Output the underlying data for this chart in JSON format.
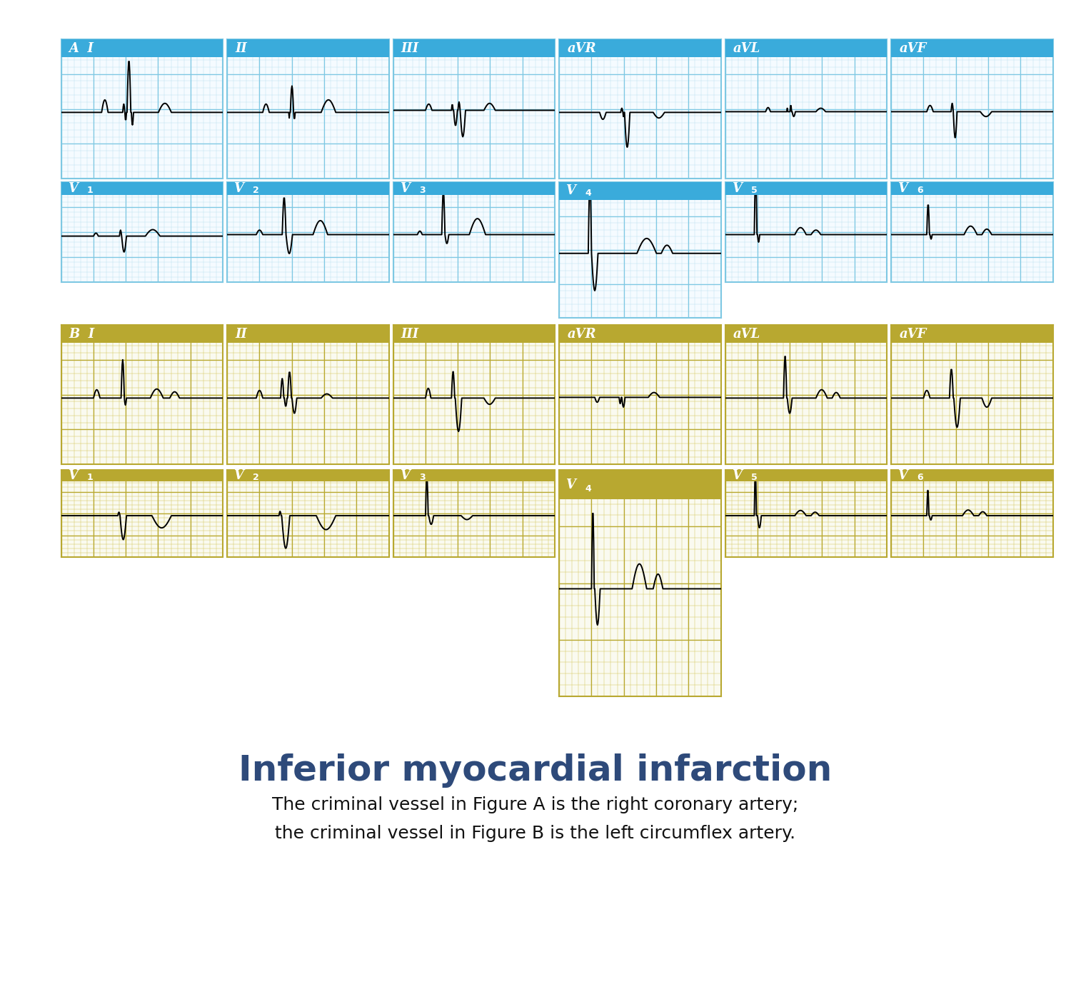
{
  "title": "Inferior myocardial infarction",
  "subtitle1": "The criminal vessel in Figure A is the right coronary artery;",
  "subtitle2": "the criminal vessel in Figure B is the left circumflex artery.",
  "blue_header_color": "#3AABDB",
  "gold_header_color": "#B8A830",
  "grid_blue_minor": "#BDE0F0",
  "grid_blue_major": "#7EC8E3",
  "grid_gold_minor": "#D4C55A",
  "grid_gold_major": "#B8A830",
  "bg_color": "#FFFFFF",
  "panel_bg": "#F5FBFF",
  "panel_bg_gold": "#FAFAF0",
  "title_color": "#2E4A7A",
  "subtitle_color": "#111111",
  "title_fontsize": 36,
  "subtitle_fontsize": 18,
  "footer_color": "#1A2A3A",
  "labels_A": [
    "A  I",
    "II",
    "III",
    "aVR",
    "aVL",
    "aVF"
  ],
  "labels_AV": [
    "V1",
    "V2",
    "V3",
    "V4",
    "V5",
    "V6"
  ],
  "labels_B": [
    "B  I",
    "II",
    "III",
    "aVR",
    "aVL",
    "aVF"
  ],
  "labels_BV": [
    "V1",
    "V2",
    "V3",
    "V4",
    "V5",
    "V6"
  ]
}
